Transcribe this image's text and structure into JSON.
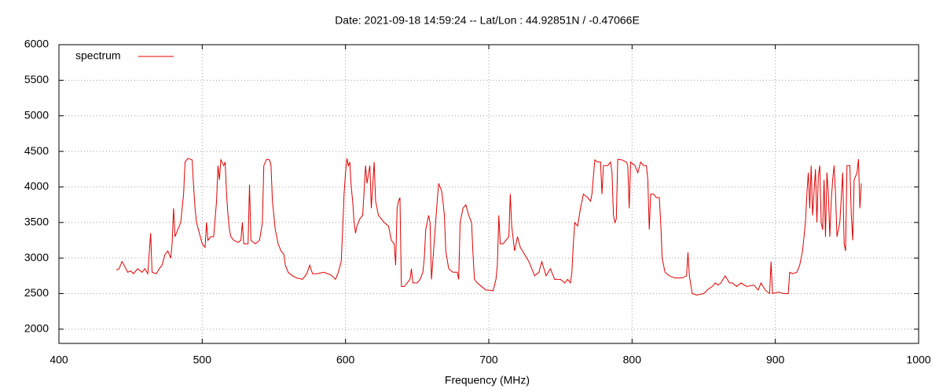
{
  "chart_data": {
    "type": "line",
    "title": "Date: 2021-09-18 14:59:24  --  Lat/Lon : 44.92851N / -0.47066E",
    "x_label": "Frequency (MHz)",
    "legend": "top-left",
    "grid": true,
    "xlim": [
      400,
      1000
    ],
    "xticks": [
      400,
      500,
      600,
      700,
      800,
      900,
      1000
    ],
    "ylim": [
      1800,
      6000
    ],
    "yticks": [
      2000,
      2500,
      3000,
      3500,
      4000,
      4500,
      5000,
      5500,
      6000
    ],
    "x": [
      440,
      442,
      444,
      446,
      448,
      450,
      452,
      455,
      458,
      460,
      462,
      464,
      465,
      468,
      470,
      472,
      474,
      476,
      478,
      479,
      480,
      481,
      483,
      485,
      487,
      488,
      490,
      493,
      494,
      495,
      496,
      498,
      500,
      502,
      503,
      504,
      506,
      508,
      510,
      511,
      512,
      513,
      515,
      516,
      517,
      518,
      519,
      520,
      522,
      525,
      527,
      528,
      529,
      532,
      533,
      534,
      537,
      540,
      542,
      543,
      545,
      547,
      548,
      549,
      551,
      553,
      555,
      557,
      558,
      560,
      563,
      566,
      570,
      573,
      575,
      577,
      580,
      585,
      590,
      593,
      595,
      597,
      598,
      599,
      600,
      601,
      602,
      603,
      604,
      605,
      606,
      607,
      608,
      610,
      612,
      614,
      615,
      617,
      618,
      620,
      621,
      623,
      625,
      627,
      630,
      632,
      634,
      635,
      636,
      637,
      638,
      639,
      641,
      643,
      645,
      646,
      647,
      650,
      652,
      654,
      655,
      656,
      658,
      659,
      660,
      662,
      664,
      665,
      667,
      668,
      669,
      670,
      672,
      675,
      678,
      679,
      680,
      682,
      684,
      686,
      688,
      689,
      690,
      692,
      695,
      698,
      700,
      703,
      705,
      706,
      707,
      708,
      710,
      712,
      714,
      715,
      716,
      718,
      720,
      722,
      725,
      728,
      730,
      732,
      735,
      737,
      740,
      743,
      746,
      750,
      753,
      755,
      757,
      758,
      759,
      760,
      762,
      764,
      766,
      769,
      771,
      772,
      774,
      776,
      778,
      779,
      780,
      783,
      785,
      786,
      787,
      788,
      789,
      790,
      793,
      796,
      797,
      798,
      799,
      802,
      804,
      806,
      808,
      810,
      811,
      812,
      813,
      815,
      817,
      819,
      820,
      821,
      823,
      826,
      830,
      835,
      838,
      839,
      840,
      842,
      845,
      850,
      853,
      856,
      858,
      860,
      862,
      865,
      868,
      870,
      873,
      876,
      880,
      885,
      888,
      890,
      893,
      896,
      897,
      898,
      902,
      906,
      909,
      910,
      912,
      915,
      917,
      919,
      921,
      922,
      923,
      924,
      925,
      926,
      928,
      929,
      930,
      931,
      932,
      933,
      934,
      935,
      936,
      937,
      938,
      939,
      940,
      941,
      942,
      943,
      945,
      947,
      948,
      949,
      950,
      952,
      953,
      954,
      955,
      957,
      958,
      959,
      960
    ],
    "series": [
      {
        "name": "spectrum",
        "color": "#e00000",
        "values": [
          2830,
          2850,
          2950,
          2880,
          2800,
          2820,
          2780,
          2850,
          2800,
          2850,
          2780,
          3350,
          2800,
          2780,
          2850,
          2900,
          3050,
          3100,
          3000,
          3200,
          3700,
          3300,
          3400,
          3500,
          3900,
          4350,
          4400,
          4380,
          4000,
          3700,
          3500,
          3350,
          3200,
          3150,
          3500,
          3250,
          3300,
          3300,
          3800,
          4300,
          4100,
          4380,
          4300,
          4350,
          3900,
          3600,
          3400,
          3300,
          3250,
          3220,
          3250,
          3500,
          3200,
          3200,
          4030,
          3250,
          3200,
          3250,
          3500,
          4300,
          4390,
          4380,
          4300,
          3800,
          3400,
          3200,
          3100,
          3050,
          2900,
          2800,
          2750,
          2720,
          2700,
          2780,
          2900,
          2780,
          2780,
          2800,
          2760,
          2700,
          2800,
          2950,
          3400,
          3900,
          4200,
          4400,
          4300,
          4350,
          4000,
          3800,
          3500,
          3350,
          3450,
          3550,
          3600,
          4300,
          4050,
          4300,
          3700,
          4350,
          3800,
          3600,
          3550,
          3500,
          3450,
          3250,
          3200,
          2900,
          3700,
          3800,
          3850,
          2600,
          2600,
          2650,
          2700,
          2850,
          2650,
          2650,
          2700,
          2800,
          3000,
          3400,
          3600,
          3500,
          2700,
          3250,
          3800,
          4050,
          3950,
          3800,
          3600,
          3100,
          2850,
          2800,
          2800,
          2700,
          3500,
          3700,
          3750,
          3600,
          3500,
          3050,
          2700,
          2650,
          2600,
          2550,
          2550,
          2540,
          2700,
          2900,
          3600,
          3200,
          3200,
          3250,
          3300,
          3900,
          3450,
          3100,
          3300,
          3150,
          3050,
          2950,
          2850,
          2750,
          2800,
          2950,
          2750,
          2850,
          2700,
          2700,
          2650,
          2700,
          2650,
          2800,
          3200,
          3500,
          3450,
          3700,
          3900,
          3850,
          3800,
          3900,
          4380,
          4350,
          4350,
          3900,
          4300,
          4300,
          4350,
          4200,
          3600,
          3500,
          3550,
          4390,
          4380,
          4350,
          4300,
          3700,
          4350,
          4300,
          4200,
          4350,
          4300,
          4300,
          4100,
          3400,
          3900,
          3900,
          3850,
          3850,
          3500,
          3000,
          2800,
          2750,
          2720,
          2720,
          2750,
          3080,
          2750,
          2500,
          2480,
          2500,
          2560,
          2600,
          2650,
          2620,
          2650,
          2750,
          2650,
          2650,
          2600,
          2650,
          2600,
          2620,
          2550,
          2650,
          2550,
          2500,
          2950,
          2500,
          2520,
          2500,
          2500,
          2800,
          2780,
          2800,
          2900,
          3100,
          3500,
          3900,
          4200,
          3700,
          4300,
          3600,
          4250,
          3500,
          4150,
          4300,
          3500,
          3400,
          4100,
          3300,
          4200,
          3900,
          3300,
          3800,
          4100,
          4300,
          3900,
          3300,
          3500,
          4200,
          3200,
          3100,
          4300,
          4300,
          3600,
          3250,
          4100,
          4200,
          4390,
          3700,
          4050
        ]
      }
    ]
  }
}
